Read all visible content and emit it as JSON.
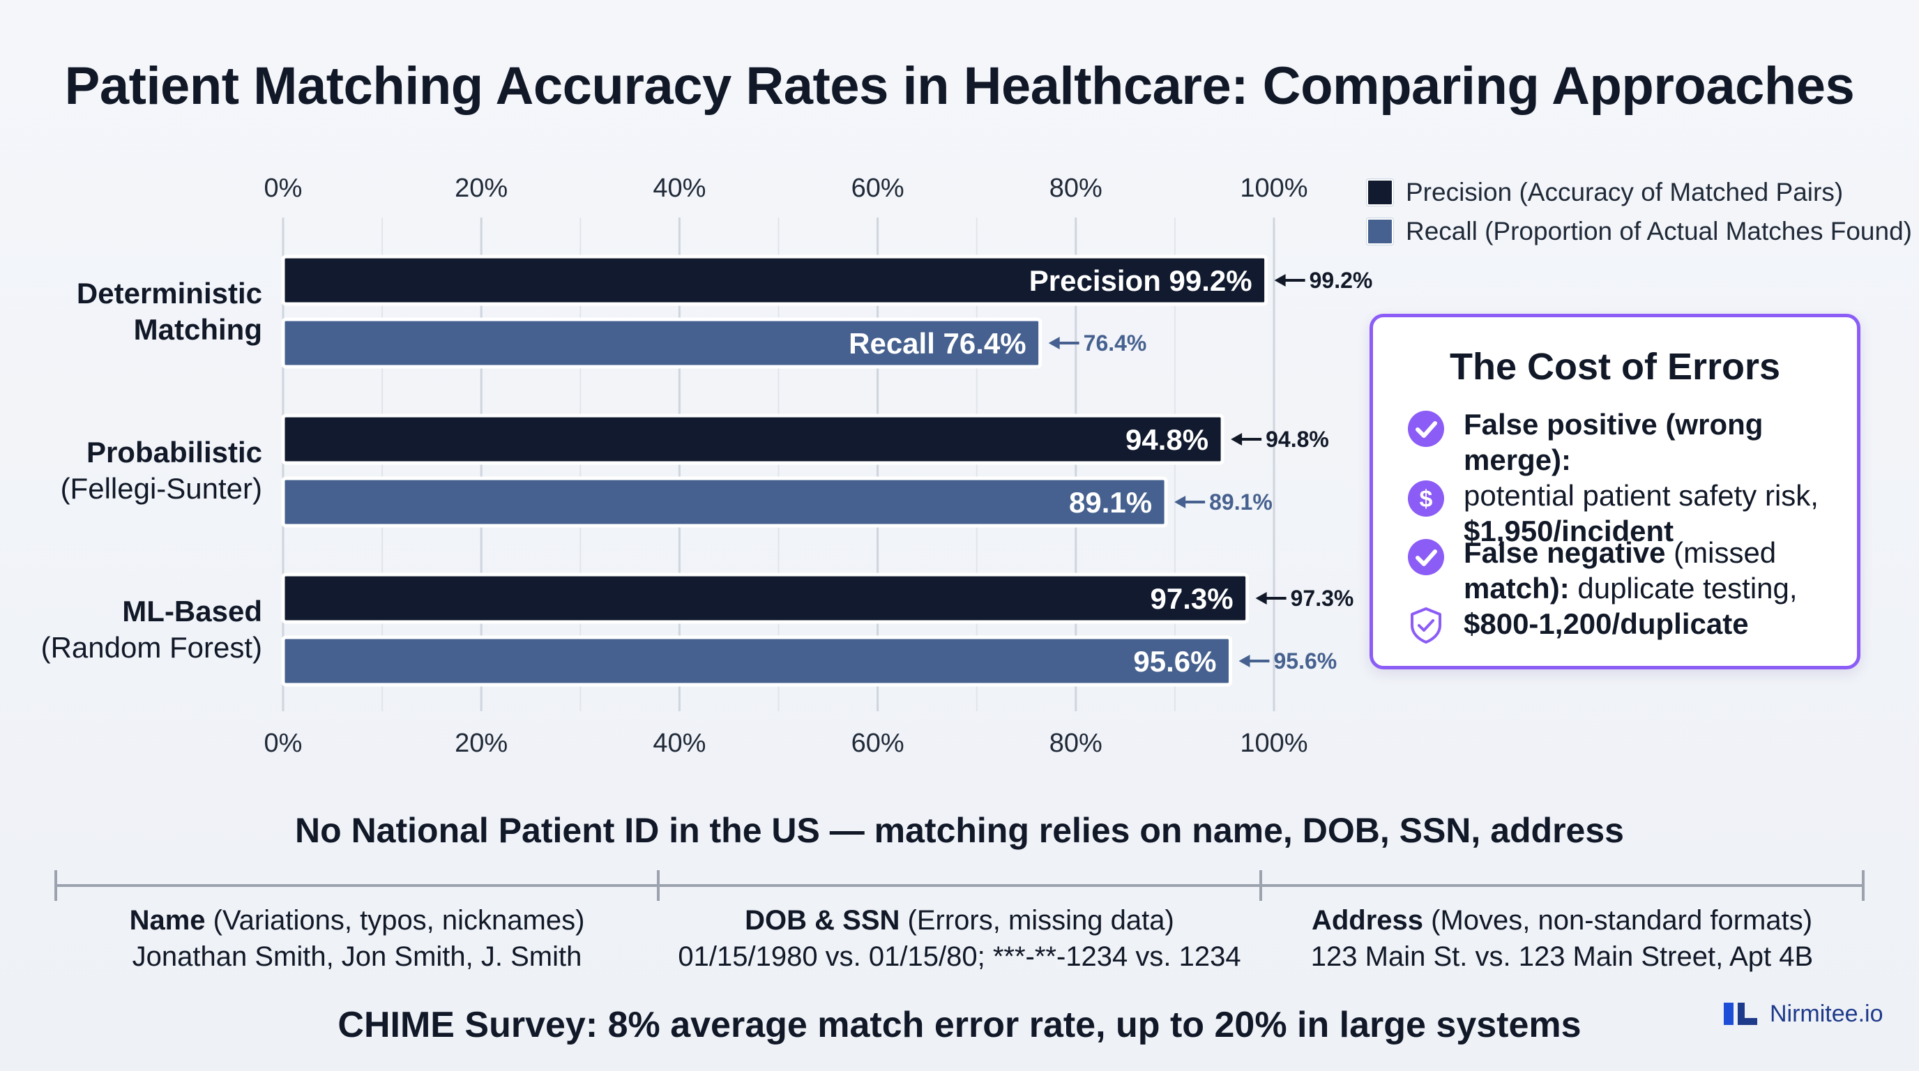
{
  "title": "Patient Matching Accuracy Rates in Healthcare: Comparing Approaches",
  "chart_data": {
    "type": "bar",
    "orientation": "horizontal",
    "title": "Patient Matching Accuracy Rates in Healthcare: Comparing Approaches",
    "categories": [
      {
        "line1": "Deterministic",
        "line2": "Matching",
        "line2_bold": true
      },
      {
        "line1": "Probabilistic",
        "line2": "(Fellegi-Sunter)",
        "line2_bold": false
      },
      {
        "line1": "ML-Based",
        "line2": "(Random Forest)",
        "line2_bold": false
      }
    ],
    "series": [
      {
        "name": "Precision (Accuracy of Matched Pairs)",
        "color": "#111a2e",
        "values": [
          99.2,
          94.8,
          97.3
        ],
        "bar_labels": [
          "Precision 99.2%",
          "94.8%",
          "97.3%"
        ],
        "callouts": [
          "99.2%",
          "94.8%",
          "97.3%"
        ]
      },
      {
        "name": "Recall (Proportion of Actual Matches Found)",
        "color": "#46618f",
        "values": [
          76.4,
          89.1,
          95.6
        ],
        "bar_labels": [
          "Recall 76.4%",
          "89.1%",
          "95.6%"
        ],
        "callouts": [
          "76.4%",
          "89.1%",
          "95.6%"
        ]
      }
    ],
    "xlim": [
      0,
      100
    ],
    "ticks": [
      "0%",
      "20%",
      "40%",
      "60%",
      "80%",
      "100%"
    ],
    "grid": true,
    "legend": "top-right"
  },
  "legend": {
    "precision": "Precision (Accuracy of Matched Pairs)",
    "recall": "Recall (Proportion of Actual Matches Found)",
    "precision_color": "#111a2e",
    "recall_color": "#46618f"
  },
  "cost": {
    "title": "The Cost of Errors",
    "fp_bold": "False positive (wrong merge):",
    "fp_text": "potential patient safety risk,",
    "fp_cost": "$1,950/incident",
    "fn_bold1": "False negative",
    "fn_text1": " (missed",
    "fn_bold2": "match):",
    "fn_text2": " duplicate testing,",
    "fn_cost": "$800-1,200/duplicate",
    "icons": [
      "check-circle-icon",
      "dollar-circle-icon",
      "check-circle-icon",
      "shield-check-icon"
    ],
    "accent": "#8b5cf6"
  },
  "subhead": "No National Patient ID in the US — matching relies on name, DOB, SSN, address",
  "fields": [
    {
      "label": "Name",
      "desc": " (Variations, typos, nicknames)",
      "example": "Jonathan Smith, Jon Smith, J. Smith"
    },
    {
      "label": "DOB & SSN",
      "desc": " (Errors, missing data)",
      "example": "01/15/1980 vs. 01/15/80; ***-**-1234 vs. 1234"
    },
    {
      "label": "Address",
      "desc": " (Moves, non-standard formats)",
      "example": "123 Main St. vs. 123 Main Street, Apt 4B"
    }
  ],
  "footer": "CHIME Survey: 8% average match error rate, up to 20% in large systems",
  "brand": "Nirmitee.io"
}
